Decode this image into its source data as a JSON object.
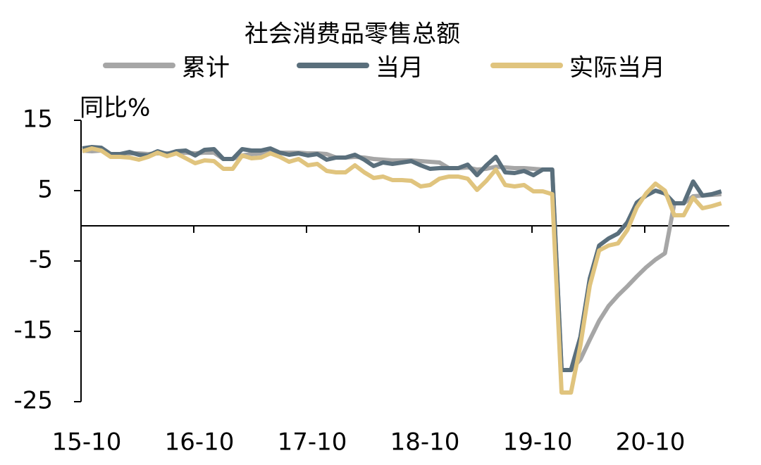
{
  "chart_data": {
    "type": "line",
    "title": "社会消费品零售总额",
    "ylabel": "同比%",
    "categories": [
      "15-10",
      null,
      null,
      null,
      null,
      null,
      null,
      null,
      null,
      null,
      null,
      null,
      "16-10",
      null,
      null,
      null,
      null,
      null,
      null,
      null,
      null,
      null,
      null,
      null,
      "17-10",
      null,
      null,
      null,
      null,
      null,
      null,
      null,
      null,
      null,
      null,
      null,
      "18-10",
      null,
      null,
      null,
      null,
      null,
      null,
      null,
      null,
      null,
      null,
      null,
      "19-10",
      null,
      null,
      null,
      null,
      null,
      null,
      null,
      null,
      null,
      null,
      null,
      "20-10",
      null,
      null,
      null,
      null,
      null,
      null,
      null,
      null
    ],
    "series": [
      {
        "name": "累计",
        "color": "#a6a6a6",
        "values": [
          10.7,
          10.6,
          10.7,
          10.2,
          10.2,
          10.3,
          10.3,
          10.2,
          10.3,
          10.3,
          10.3,
          10.4,
          10.3,
          10.4,
          10.4,
          9.5,
          9.5,
          10.0,
          10.2,
          10.3,
          10.4,
          10.4,
          10.4,
          10.4,
          10.3,
          10.3,
          10.2,
          9.7,
          9.7,
          9.8,
          9.7,
          9.5,
          9.4,
          9.3,
          9.3,
          9.3,
          9.2,
          9.1,
          9.0,
          8.2,
          8.2,
          8.3,
          8.0,
          8.1,
          8.4,
          8.3,
          8.2,
          8.2,
          8.1,
          8.0,
          8.0,
          -20.5,
          -20.5,
          -19.0,
          -16.2,
          -13.5,
          -11.4,
          -9.9,
          -8.6,
          -7.2,
          -5.9,
          -4.8,
          -3.9,
          3.2,
          3.2,
          4.2,
          4.3,
          4.4,
          4.5
        ]
      },
      {
        "name": "当月",
        "color": "#5a6f7c",
        "values": [
          11.0,
          11.2,
          11.1,
          10.2,
          10.2,
          10.5,
          10.1,
          10.0,
          10.6,
          10.2,
          10.6,
          10.7,
          10.0,
          10.8,
          10.9,
          9.5,
          9.5,
          10.9,
          10.7,
          10.7,
          11.0,
          10.4,
          10.1,
          10.3,
          10.0,
          10.2,
          9.4,
          9.7,
          9.7,
          10.1,
          9.4,
          8.5,
          9.0,
          8.8,
          9.0,
          9.2,
          8.6,
          8.1,
          8.2,
          8.2,
          8.2,
          8.7,
          7.2,
          8.6,
          9.8,
          7.6,
          7.5,
          7.8,
          7.2,
          8.0,
          8.0,
          -20.5,
          -20.5,
          -15.8,
          -7.5,
          -2.8,
          -1.8,
          -1.1,
          0.5,
          3.3,
          4.3,
          5.0,
          4.6,
          3.2,
          3.2,
          6.3,
          4.3,
          4.5,
          4.9
        ]
      },
      {
        "name": "实际当月",
        "color": "#e0c47e",
        "values": [
          10.6,
          11.0,
          10.7,
          9.8,
          9.8,
          9.7,
          9.4,
          9.8,
          10.4,
          9.9,
          10.3,
          9.6,
          8.9,
          9.3,
          9.2,
          8.1,
          8.1,
          10.0,
          9.6,
          9.7,
          10.3,
          9.8,
          9.1,
          9.5,
          8.6,
          8.8,
          7.8,
          7.6,
          7.6,
          8.6,
          7.6,
          6.8,
          7.0,
          6.5,
          6.5,
          6.4,
          5.6,
          5.8,
          6.7,
          7.0,
          7.0,
          6.7,
          5.1,
          6.4,
          8.0,
          5.8,
          5.6,
          5.8,
          4.9,
          4.9,
          4.5,
          -23.7,
          -23.7,
          -17.0,
          -8.5,
          -3.5,
          -2.8,
          -2.5,
          -0.6,
          2.6,
          4.6,
          6.0,
          5.0,
          1.5,
          1.5,
          4.0,
          2.5,
          2.8,
          3.2
        ]
      }
    ],
    "ylim": [
      -25,
      15
    ],
    "yticks": [
      -25,
      -15,
      -5,
      5,
      15
    ]
  }
}
